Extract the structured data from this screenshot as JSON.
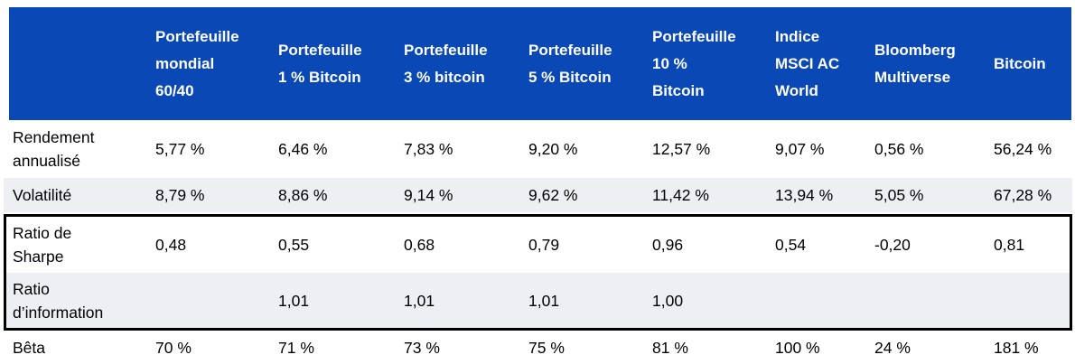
{
  "colors": {
    "header_bg": "#0A48B6",
    "header_text": "#FFFFFF",
    "zebra_row_bg": "#EDEFF2",
    "body_text": "#000000",
    "highlight_box_border": "#000000"
  },
  "table": {
    "corner_label": "",
    "columns": [
      "Portefeuille\nmondial\n60/40",
      "Portefeuille\n1 % Bitcoin",
      "Portefeuille\n3 % bitcoin",
      "Portefeuille\n5 % Bitcoin",
      "Portefeuille\n10 %\nBitcoin",
      "Indice\nMSCI AC\nWorld",
      "Bloomberg\nMultiverse",
      "Bitcoin"
    ],
    "rows": [
      {
        "label": "Rendement\nannualisé",
        "values": [
          "5,77 %",
          "6,46 %",
          "7,83 %",
          "9,20 %",
          "12,57 %",
          "9,07 %",
          "0,56 %",
          "56,24 %"
        ]
      },
      {
        "label": "Volatilité",
        "values": [
          "8,79 %",
          "8,86 %",
          "9,14 %",
          "9,62 %",
          "11,42 %",
          "13,94 %",
          "5,05 %",
          "67,28 %"
        ]
      },
      {
        "label": "Ratio de\nSharpe",
        "values": [
          "0,48",
          "0,55",
          "0,68",
          "0,79",
          "0,96",
          "0,54",
          "-0,20",
          "0,81"
        ]
      },
      {
        "label": "Ratio\nd’information",
        "values": [
          "",
          "1,01",
          "1,01",
          "1,01",
          "1,00",
          "",
          "",
          ""
        ]
      },
      {
        "label": "Bêta",
        "values": [
          "70 %",
          "71 %",
          "73 %",
          "75 %",
          "81 %",
          "100 %",
          "24 %",
          "181 %"
        ]
      }
    ]
  }
}
